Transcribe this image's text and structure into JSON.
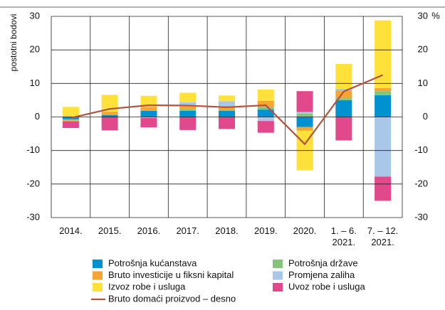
{
  "chart_data": {
    "type": "bar",
    "stacked": true,
    "categories": [
      "2014.",
      "2015.",
      "2016.",
      "2017.",
      "2018.",
      "2019.",
      "2020.",
      "1. – 6.\n2021.",
      "7. – 12.\n2021."
    ],
    "y_label": "postotni bodovi",
    "y2_label": "%",
    "ylim": [
      -30,
      30
    ],
    "yticks": [
      -30,
      -20,
      -10,
      0,
      10,
      20,
      30
    ],
    "y2lim": [
      -30,
      30
    ],
    "y2ticks": [
      -30,
      -20,
      -10,
      0,
      10,
      20,
      30
    ],
    "grid": true,
    "series": [
      {
        "name": "Potrošnja kućanstava",
        "color": "#0091d0",
        "values": [
          -0.7,
          0.6,
          1.8,
          1.8,
          1.8,
          2.2,
          -3.0,
          5.0,
          6.5
        ]
      },
      {
        "name": "Potrošnja države",
        "color": "#86c47d",
        "values": [
          -0.3,
          0.1,
          0.2,
          0.5,
          0.3,
          0.8,
          1.0,
          0.6,
          1.2
        ]
      },
      {
        "name": "Bruto investicije u fiksni kapital",
        "color": "#f5a533",
        "values": [
          -0.3,
          0.8,
          1.0,
          0.8,
          0.8,
          1.8,
          -1.1,
          2.3,
          0.9
        ]
      },
      {
        "name": "Promjena zaliha",
        "color": "#a9c7e8",
        "values": [
          0.2,
          0.1,
          -0.3,
          1.3,
          1.8,
          -1.2,
          0.5,
          0.5,
          -17.8
        ]
      },
      {
        "name": "Izvoz robe i usluga",
        "color": "#ffe13a",
        "values": [
          2.8,
          5.0,
          3.3,
          2.8,
          1.7,
          3.4,
          -11.8,
          7.4,
          20.2
        ]
      },
      {
        "name": "Uvoz robe i usluga",
        "color": "#e2498c",
        "values": [
          -2.0,
          -4.0,
          -2.8,
          -3.9,
          -3.6,
          -3.5,
          6.2,
          -7.0,
          -7.2
        ]
      },
      {
        "name": "Bruto domaći proizvod – desno",
        "color": "#b5523b",
        "type": "line",
        "axis": "y2",
        "values": [
          -0.3,
          2.4,
          3.5,
          3.4,
          2.9,
          3.5,
          -8.1,
          7.6,
          12.5
        ]
      }
    ]
  }
}
